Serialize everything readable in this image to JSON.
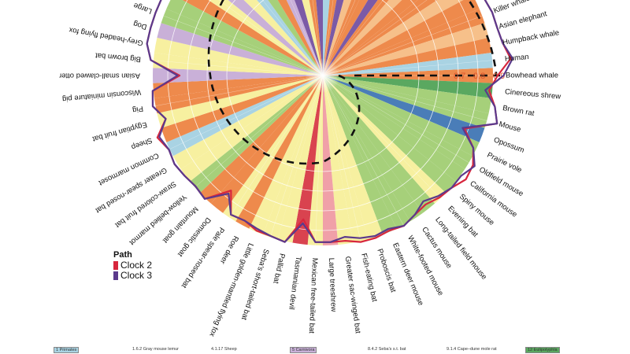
{
  "chart_data": {
    "type": "radial-line",
    "title": "",
    "axis_ticks": [
      "0.7",
      "0.8",
      "0.9"
    ],
    "axis_tick_values": [
      0.7,
      0.8,
      0.9
    ],
    "species": [
      {
        "name": "Bowhead whale",
        "color": "#ee8a4c",
        "clock2": 0.9,
        "clock3": 0.93
      },
      {
        "name": "Cinereous shrew",
        "color": "#5aa860",
        "clock2": 0.86,
        "clock3": 0.84
      },
      {
        "name": "Brown rat",
        "color": "#a6d07a",
        "clock2": 0.9,
        "clock3": 0.9
      },
      {
        "name": "Mouse",
        "color": "#a6d07a",
        "clock2": 0.93,
        "clock3": 0.93
      },
      {
        "name": "Opossum",
        "color": "#4a7db8",
        "clock2": 0.78,
        "clock3": 0.77
      },
      {
        "name": "Prairie vole",
        "color": "#a6d07a",
        "clock2": 0.86,
        "clock3": 0.86
      },
      {
        "name": "Oldfield mouse",
        "color": "#a6d07a",
        "clock2": 0.9,
        "clock3": 0.91
      },
      {
        "name": "California mouse",
        "color": "#a6d07a",
        "clock2": 0.91,
        "clock3": 0.88
      },
      {
        "name": "Spiny mouse",
        "color": "#a6d07a",
        "clock2": 0.88,
        "clock3": 0.88
      },
      {
        "name": "Evening bat",
        "color": "#f7f0a0",
        "clock2": 0.87,
        "clock3": 0.86
      },
      {
        "name": "Long-tailed field mouse",
        "color": "#a6d07a",
        "clock2": 0.85,
        "clock3": 0.83
      },
      {
        "name": "Cactus mouse",
        "color": "#a6d07a",
        "clock2": 0.86,
        "clock3": 0.86
      },
      {
        "name": "White-footed mouse",
        "color": "#a6d07a",
        "clock2": 0.88,
        "clock3": 0.88
      },
      {
        "name": "Eastern deer mouse",
        "color": "#a6d07a",
        "clock2": 0.87,
        "clock3": 0.86
      },
      {
        "name": "Proboscis bat",
        "color": "#f7f0a0",
        "clock2": 0.88,
        "clock3": 0.87
      },
      {
        "name": "Fish-eating bat",
        "color": "#f7f0a0",
        "clock2": 0.88,
        "clock3": 0.86
      },
      {
        "name": "Greater sac-winged bat",
        "color": "#f7f0a0",
        "clock2": 0.86,
        "clock3": 0.84
      },
      {
        "name": "Large treeshrew",
        "color": "#f0a0a8",
        "clock2": 0.86,
        "clock3": 0.86
      },
      {
        "name": "Mexican free-tailed bat",
        "color": "#f7f0a0",
        "clock2": 0.86,
        "clock3": 0.86
      },
      {
        "name": "Tasmanian devil",
        "color": "#d9434f",
        "clock2": 0.75,
        "clock3": 0.77
      },
      {
        "name": "Pallid bat",
        "color": "#f7f0a0",
        "clock2": 0.88,
        "clock3": 0.88
      },
      {
        "name": "Seba's short-tailed bat",
        "color": "#f7f0a0",
        "clock2": 0.87,
        "clock3": 0.87
      },
      {
        "name": "Little golden-mantled flying fox",
        "color": "#f7f0a0",
        "clock2": 0.87,
        "clock3": 0.86
      },
      {
        "name": "Roe deer",
        "color": "#ee8a4c",
        "clock2": 0.85,
        "clock3": 0.85
      },
      {
        "name": "Pale spear-nosed bat",
        "color": "#f7f0a0",
        "clock2": 0.86,
        "clock3": 0.86
      },
      {
        "name": "Domestic goat",
        "color": "#ee8a4c",
        "clock2": 0.76,
        "clock3": 0.78
      },
      {
        "name": "Mountain goat",
        "color": "#ee8a4c",
        "clock2": 0.88,
        "clock3": 0.88
      },
      {
        "name": "Yellow-bellied marmot",
        "color": "#a6d07a",
        "clock2": 0.87,
        "clock3": 0.87
      },
      {
        "name": "Straw-colored fruit bat",
        "color": "#f7f0a0",
        "clock2": 0.88,
        "clock3": 0.88
      },
      {
        "name": "Greater spear-nosed bat",
        "color": "#f7f0a0",
        "clock2": 0.89,
        "clock3": 0.89
      },
      {
        "name": "Common marmoset",
        "color": "#a9d3e3",
        "clock2": 0.88,
        "clock3": 0.88
      },
      {
        "name": "Sheep",
        "color": "#ee8a4c",
        "clock2": 0.91,
        "clock3": 0.9
      },
      {
        "name": "Egyptian fruit bat",
        "color": "#f7f0a0",
        "clock2": 0.84,
        "clock3": 0.84
      },
      {
        "name": "Pig",
        "color": "#ee8a4c",
        "clock2": 0.89,
        "clock3": 0.89
      },
      {
        "name": "Wisconsin miniature pig",
        "color": "#ee8a4c",
        "clock2": 0.88,
        "clock3": 0.88
      },
      {
        "name": "Asian small-clawed otter",
        "color": "#c9b0d8",
        "clock2": 0.74,
        "clock3": 0.75
      },
      {
        "name": "Big brown bat",
        "color": "#f7f0a0",
        "clock2": 0.89,
        "clock3": 0.89
      },
      {
        "name": "Grey-headed flying fox",
        "color": "#f7f0a0",
        "clock2": 0.92,
        "clock3": 0.92
      },
      {
        "name": "Dog",
        "color": "#c9b0d8",
        "clock2": 0.92,
        "clock3": 0.92
      },
      {
        "name": "Large",
        "color": "#a6d07a",
        "clock2": 0.92,
        "clock3": 0.92
      }
    ],
    "offscreen_wedge_colors": [
      "#a6d07a",
      "#ee8a4c",
      "#f7f0a0",
      "#c9b0d8",
      "#f7f0a0",
      "#a9d3e3",
      "#a6d07a",
      "#ee8a4c",
      "#c9b0d8",
      "#7b5aa6",
      "#f7f0a0",
      "#ee8a4c",
      "#7b5aa6",
      "#a9d3e3",
      "#ee8a4c",
      "#7b5aa6",
      "#f6c08a",
      "#ee8a4c",
      "#ee8a4c",
      "#7b5aa6",
      "#ee8a4c",
      "#f6c08a",
      "#ee8a4c",
      "#ee8a4c",
      "#f6c08a"
    ],
    "species_tail": [
      {
        "name": "Bo",
        "color": "#ee8a4c",
        "clock2": 0.92,
        "clock3": 0.92
      },
      {
        "name": "Killer whale",
        "color": "#ee8a4c",
        "clock2": 0.93,
        "clock3": 0.93
      },
      {
        "name": "Asian elephant",
        "color": "#f6c08a",
        "clock2": 0.93,
        "clock3": 0.93
      },
      {
        "name": "Humpback whale",
        "color": "#ee8a4c",
        "clock2": 0.94,
        "clock3": 0.94
      },
      {
        "name": "Human",
        "color": "#a9d3e3",
        "clock2": 0.97,
        "clock3": 0.98
      }
    ]
  },
  "legend": {
    "title": "Path",
    "items": [
      {
        "label": "Clock 2",
        "color": "#d7263d"
      },
      {
        "label": "Clock 3",
        "color": "#5b3a8c"
      }
    ]
  },
  "footer": {
    "items": [
      {
        "text": "1 Primates",
        "badge": true,
        "color": "#a9d3e3"
      },
      {
        "text": "1.6.2 Gray mouse lemur",
        "badge": false
      },
      {
        "text": "4.1.17 Sheep",
        "badge": false
      },
      {
        "text": "5 Carnivora",
        "badge": true,
        "color": "#c9b0d8"
      },
      {
        "text": "8.4.2 Seba's s.t. bat",
        "badge": false
      },
      {
        "text": "9.1.4 Cape–dune mole rat",
        "badge": false
      },
      {
        "text": "12 Eulipotyphla",
        "badge": true,
        "color": "#5aa860"
      }
    ]
  }
}
